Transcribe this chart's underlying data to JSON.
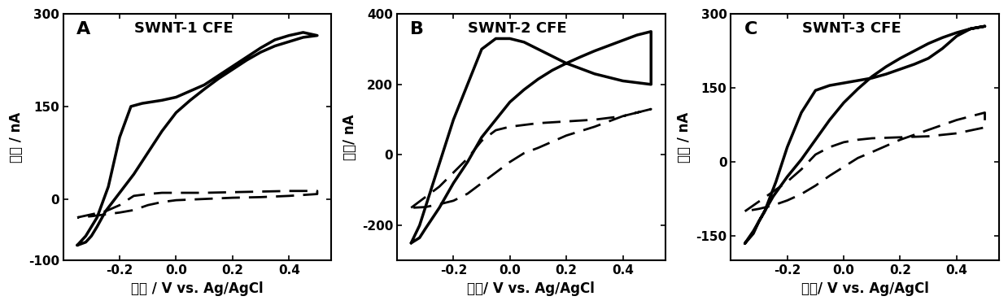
{
  "panels": [
    {
      "label": "A",
      "title": "SWNT-1 CFE",
      "ylim": [
        -100,
        300
      ],
      "yticks": [
        -100,
        0,
        150,
        300
      ],
      "ylabel": "电流 / nA",
      "xlabel": "电势 / V vs. Ag/AgCl",
      "solid_forward_x": [
        -0.35,
        -0.32,
        -0.28,
        -0.24,
        -0.2,
        -0.16,
        -0.12,
        -0.05,
        0.0,
        0.05,
        0.1,
        0.15,
        0.2,
        0.25,
        0.3,
        0.35,
        0.4,
        0.45,
        0.5
      ],
      "solid_forward_y": [
        -75,
        -60,
        -30,
        20,
        100,
        150,
        155,
        160,
        165,
        175,
        185,
        200,
        215,
        230,
        245,
        258,
        265,
        270,
        265
      ],
      "solid_backward_x": [
        0.5,
        0.45,
        0.4,
        0.35,
        0.3,
        0.25,
        0.2,
        0.15,
        0.1,
        0.05,
        0.0,
        -0.05,
        -0.1,
        -0.15,
        -0.2,
        -0.25,
        -0.28,
        -0.3,
        -0.32,
        -0.35
      ],
      "solid_backward_y": [
        265,
        262,
        255,
        248,
        238,
        225,
        210,
        195,
        178,
        160,
        140,
        110,
        75,
        40,
        10,
        -20,
        -45,
        -60,
        -70,
        -75
      ],
      "dashed_forward_x": [
        -0.35,
        -0.3,
        -0.25,
        -0.2,
        -0.15,
        -0.1,
        -0.05,
        0.0,
        0.1,
        0.2,
        0.3,
        0.4,
        0.5
      ],
      "dashed_forward_y": [
        -30,
        -25,
        -20,
        -10,
        5,
        8,
        10,
        10,
        10,
        11,
        12,
        13,
        13
      ],
      "dashed_backward_x": [
        0.5,
        0.4,
        0.3,
        0.2,
        0.1,
        0.0,
        -0.05,
        -0.1,
        -0.15,
        -0.2,
        -0.25,
        -0.3,
        -0.35
      ],
      "dashed_backward_y": [
        8,
        5,
        3,
        2,
        0,
        -2,
        -5,
        -10,
        -18,
        -22,
        -25,
        -28,
        -30
      ]
    },
    {
      "label": "B",
      "title": "SWNT-2 CFE",
      "ylim": [
        -300,
        400
      ],
      "yticks": [
        -200,
        0,
        200,
        400
      ],
      "ylabel": "电流/ nA",
      "xlabel": "电势/ V vs. Ag/AgCl",
      "solid_forward_x": [
        -0.35,
        -0.32,
        -0.28,
        -0.24,
        -0.2,
        -0.15,
        -0.1,
        -0.05,
        0.0,
        0.05,
        0.1,
        0.15,
        0.2,
        0.3,
        0.4,
        0.5
      ],
      "solid_forward_y": [
        -250,
        -200,
        -100,
        0,
        100,
        200,
        300,
        330,
        330,
        320,
        300,
        280,
        260,
        230,
        210,
        200
      ],
      "solid_backward_x": [
        0.5,
        0.45,
        0.4,
        0.35,
        0.3,
        0.25,
        0.2,
        0.15,
        0.1,
        0.05,
        0.0,
        -0.05,
        -0.1,
        -0.15,
        -0.2,
        -0.25,
        -0.3,
        -0.32,
        -0.35
      ],
      "solid_backward_y": [
        350,
        340,
        325,
        310,
        295,
        278,
        260,
        240,
        215,
        185,
        150,
        100,
        50,
        -20,
        -80,
        -150,
        -210,
        -235,
        -250
      ],
      "dashed_forward_x": [
        -0.35,
        -0.3,
        -0.25,
        -0.2,
        -0.15,
        -0.1,
        -0.05,
        0.0,
        0.05,
        0.1,
        0.2,
        0.3,
        0.4,
        0.5
      ],
      "dashed_forward_y": [
        -150,
        -120,
        -90,
        -50,
        -10,
        40,
        70,
        80,
        85,
        90,
        95,
        100,
        110,
        130
      ],
      "dashed_backward_x": [
        0.5,
        0.4,
        0.3,
        0.2,
        0.1,
        0.05,
        0.0,
        -0.05,
        -0.1,
        -0.15,
        -0.2,
        -0.25,
        -0.3,
        -0.35
      ],
      "dashed_backward_y": [
        130,
        110,
        80,
        55,
        20,
        5,
        -20,
        -50,
        -80,
        -110,
        -130,
        -140,
        -148,
        -150
      ]
    },
    {
      "label": "C",
      "title": "SWNT-3 CFE",
      "ylim": [
        -200,
        300
      ],
      "yticks": [
        -150,
        0,
        150,
        300
      ],
      "ylabel": "电流 / nA",
      "xlabel": "电势/ V vs. Ag/AgCl",
      "solid_forward_x": [
        -0.35,
        -0.32,
        -0.28,
        -0.24,
        -0.2,
        -0.15,
        -0.1,
        -0.05,
        0.0,
        0.05,
        0.1,
        0.15,
        0.2,
        0.25,
        0.3,
        0.35,
        0.4,
        0.45,
        0.5
      ],
      "solid_forward_y": [
        -165,
        -140,
        -100,
        -40,
        30,
        100,
        145,
        155,
        160,
        165,
        170,
        178,
        188,
        198,
        210,
        230,
        255,
        270,
        275
      ],
      "solid_backward_x": [
        0.5,
        0.45,
        0.4,
        0.35,
        0.3,
        0.25,
        0.2,
        0.15,
        0.1,
        0.05,
        0.0,
        -0.05,
        -0.1,
        -0.15,
        -0.2,
        -0.25,
        -0.3,
        -0.32,
        -0.35
      ],
      "solid_backward_y": [
        275,
        270,
        262,
        252,
        240,
        225,
        210,
        193,
        173,
        148,
        120,
        85,
        45,
        5,
        -30,
        -70,
        -120,
        -145,
        -165
      ],
      "dashed_forward_x": [
        -0.35,
        -0.3,
        -0.25,
        -0.2,
        -0.15,
        -0.1,
        -0.05,
        0.0,
        0.05,
        0.1,
        0.2,
        0.3,
        0.4,
        0.5
      ],
      "dashed_forward_y": [
        -100,
        -80,
        -60,
        -40,
        -15,
        15,
        30,
        40,
        45,
        48,
        50,
        52,
        58,
        70
      ],
      "dashed_backward_x": [
        0.5,
        0.4,
        0.3,
        0.2,
        0.1,
        0.05,
        0.0,
        -0.05,
        -0.1,
        -0.15,
        -0.2,
        -0.25,
        -0.3,
        -0.35
      ],
      "dashed_backward_y": [
        100,
        85,
        65,
        45,
        20,
        8,
        -10,
        -28,
        -48,
        -65,
        -78,
        -88,
        -95,
        -100
      ]
    }
  ],
  "xlim": [
    -0.4,
    0.55
  ],
  "xticks": [
    -0.2,
    0.0,
    0.2,
    0.4
  ],
  "line_color": "black",
  "solid_linewidth": 2.5,
  "dashed_linewidth": 2.0,
  "dashed_pattern": [
    8,
    4
  ],
  "bg_color": "white",
  "font_size_label": 12,
  "font_size_tick": 11,
  "font_size_panel_label": 16,
  "font_size_title": 13
}
